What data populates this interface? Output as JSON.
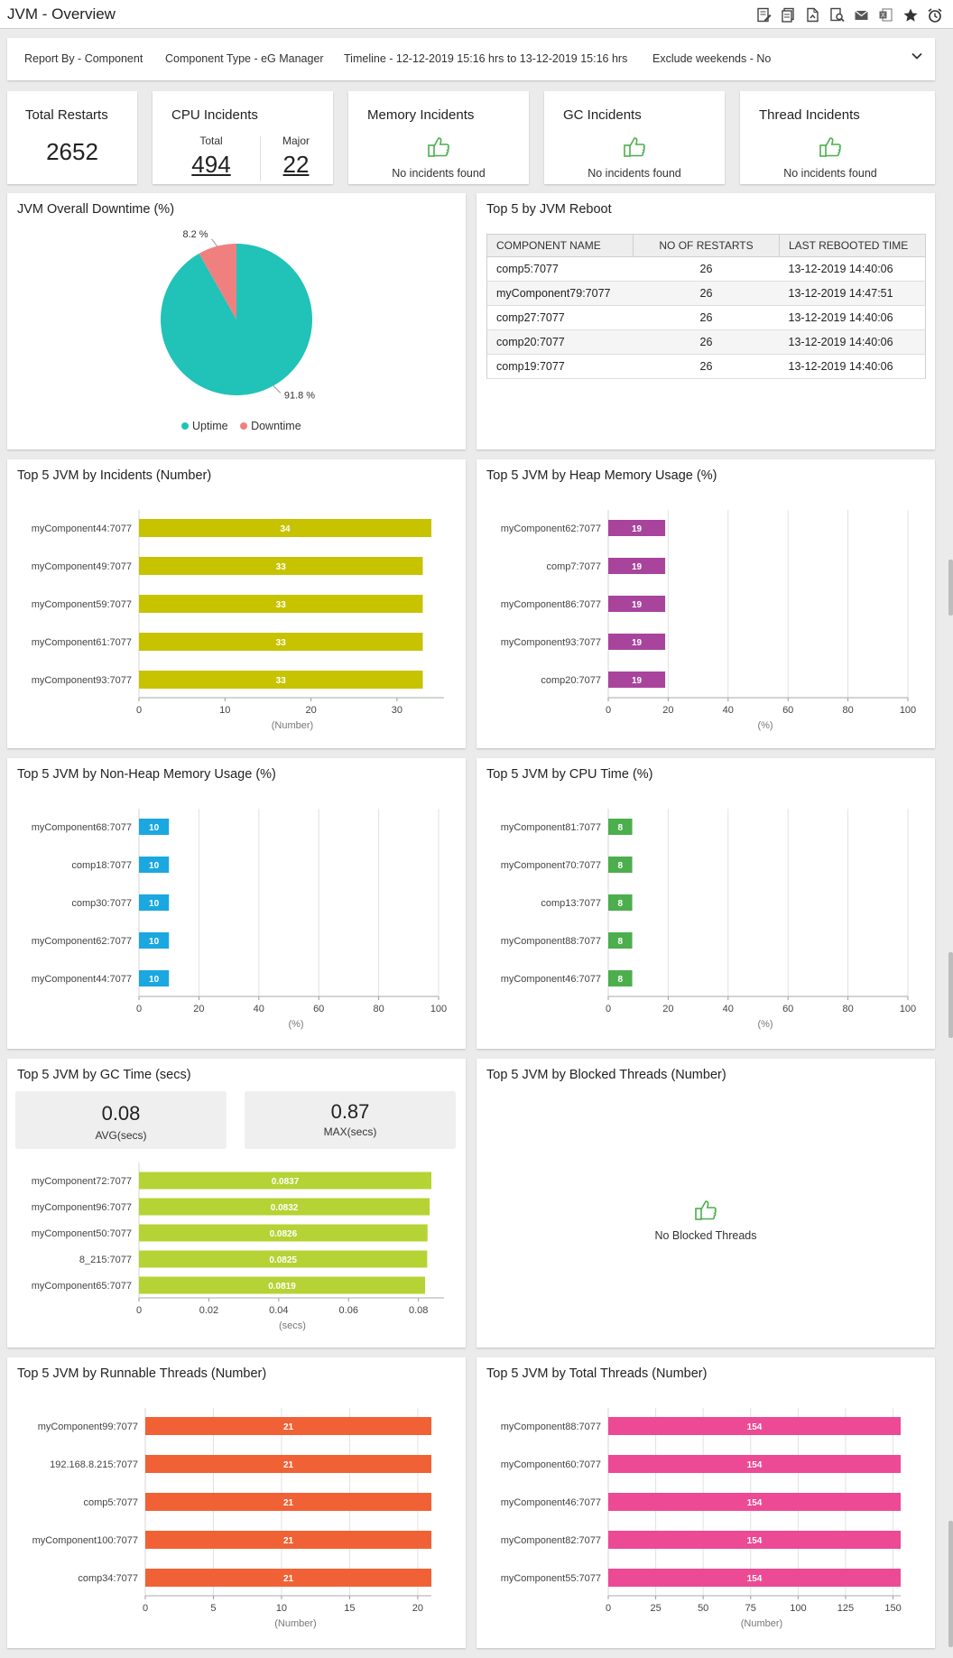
{
  "window": {
    "title": "JVM - Overview"
  },
  "toolbar": {
    "icons": [
      "report-edit-icon",
      "copy-report-icon",
      "pdf-export-icon",
      "search-report-icon",
      "email-icon",
      "excel-export-icon",
      "favorite-star-icon",
      "schedule-alarm-icon"
    ]
  },
  "filter": {
    "report_by_label": "Report By - ",
    "report_by_value": "Component",
    "component_type_label": "Component Type - ",
    "component_type_value": "eG Manager",
    "timeline_label": "Timeline - ",
    "timeline_value": "12-12-2019 15:16 hrs to 13-12-2019 15:16 hrs",
    "exclude_label": "Exclude weekends - ",
    "exclude_value": "No"
  },
  "kpis": {
    "restarts": {
      "title": "Total Restarts",
      "value": "2652"
    },
    "cpu": {
      "title": "CPU Incidents",
      "total_label": "Total",
      "total_value": "494",
      "major_label": "Major",
      "major_value": "22"
    },
    "memory": {
      "title": "Memory Incidents",
      "message": "No incidents found"
    },
    "gc": {
      "title": "GC Incidents",
      "message": "No incidents found"
    },
    "thread": {
      "title": "Thread Incidents",
      "message": "No incidents found"
    }
  },
  "downtime": {
    "title": "JVM Overall Downtime (%)",
    "uptime_label": "Uptime",
    "downtime_label": "Downtime",
    "uptime_pct": 91.8,
    "downtime_pct": 8.2,
    "uptime_text": "91.8 %",
    "downtime_text": "8.2 %",
    "uptime_color": "#21c2b8",
    "downtime_color": "#f08080"
  },
  "reboot": {
    "title": "Top 5 by JVM Reboot",
    "headers": [
      "COMPONENT NAME",
      "NO OF RESTARTS",
      "LAST REBOOTED TIME"
    ],
    "rows": [
      [
        "comp5:7077",
        "26",
        "13-12-2019 14:40:06"
      ],
      [
        "myComponent79:7077",
        "26",
        "13-12-2019 14:47:51"
      ],
      [
        "comp27:7077",
        "26",
        "13-12-2019 14:40:06"
      ],
      [
        "comp20:7077",
        "26",
        "13-12-2019 14:40:06"
      ],
      [
        "comp19:7077",
        "26",
        "13-12-2019 14:40:06"
      ]
    ]
  },
  "gc_stats": {
    "avg_value": "0.08",
    "avg_label": "AVG(secs)",
    "max_value": "0.87",
    "max_label": "MAX(secs)"
  },
  "blocked": {
    "title": "Top 5 JVM by Blocked Threads (Number)",
    "message": "No Blocked Threads"
  },
  "chart_data": [
    {
      "id": "incidents",
      "type": "bar",
      "orientation": "horizontal",
      "title": "Top 5 JVM by Incidents (Number)",
      "xlabel": "(Number)",
      "categories": [
        "myComponent44:7077",
        "myComponent49:7077",
        "myComponent59:7077",
        "myComponent61:7077",
        "myComponent93:7077"
      ],
      "values": [
        34,
        33,
        33,
        33,
        33
      ],
      "labels": [
        "34",
        "33",
        "33",
        "33",
        "33"
      ],
      "xlim": [
        0,
        34
      ],
      "ticks": [
        0,
        10,
        20,
        30
      ],
      "tick_labels": [
        "0",
        "10",
        "20",
        "30"
      ],
      "color": "#c8c300",
      "grid": false
    },
    {
      "id": "heap",
      "type": "bar",
      "orientation": "horizontal",
      "title": "Top 5 JVM by Heap Memory Usage (%)",
      "xlabel": "(%)",
      "categories": [
        "myComponent62:7077",
        "comp7:7077",
        "myComponent86:7077",
        "myComponent93:7077",
        "comp20:7077"
      ],
      "values": [
        19,
        19,
        19,
        19,
        19
      ],
      "labels": [
        "19",
        "19",
        "19",
        "19",
        "19"
      ],
      "xlim": [
        0,
        100
      ],
      "ticks": [
        0,
        20,
        40,
        60,
        80,
        100
      ],
      "tick_labels": [
        "0",
        "20",
        "40",
        "60",
        "80",
        "100"
      ],
      "color": "#a8449c",
      "grid": true
    },
    {
      "id": "nonheap",
      "type": "bar",
      "orientation": "horizontal",
      "title": "Top 5 JVM by Non-Heap Memory Usage (%)",
      "xlabel": "(%)",
      "categories": [
        "myComponent68:7077",
        "comp18:7077",
        "comp30:7077",
        "myComponent62:7077",
        "myComponent44:7077"
      ],
      "values": [
        10,
        10,
        10,
        10,
        10
      ],
      "labels": [
        "10",
        "10",
        "10",
        "10",
        "10"
      ],
      "xlim": [
        0,
        100
      ],
      "ticks": [
        0,
        20,
        40,
        60,
        80,
        100
      ],
      "tick_labels": [
        "0",
        "20",
        "40",
        "60",
        "80",
        "100"
      ],
      "color": "#1ba7e0",
      "grid": true
    },
    {
      "id": "cpu",
      "type": "bar",
      "orientation": "horizontal",
      "title": "Top 5 JVM by CPU Time (%)",
      "xlabel": "(%)",
      "categories": [
        "myComponent81:7077",
        "myComponent70:7077",
        "comp13:7077",
        "myComponent88:7077",
        "myComponent46:7077"
      ],
      "values": [
        8,
        8,
        8,
        8,
        8
      ],
      "labels": [
        "8",
        "8",
        "8",
        "8",
        "8"
      ],
      "xlim": [
        0,
        100
      ],
      "ticks": [
        0,
        20,
        40,
        60,
        80,
        100
      ],
      "tick_labels": [
        "0",
        "20",
        "40",
        "60",
        "80",
        "100"
      ],
      "color": "#4cae4c",
      "grid": true
    },
    {
      "id": "gctime",
      "type": "bar",
      "orientation": "horizontal",
      "title": "Top 5 JVM by GC Time (secs)",
      "xlabel": "(secs)",
      "categories": [
        "myComponent72:7077",
        "myComponent96:7077",
        "myComponent50:7077",
        "8_215:7077",
        "myComponent65:7077"
      ],
      "values": [
        0.0837,
        0.0832,
        0.0826,
        0.0825,
        0.0819
      ],
      "labels": [
        "0.0837",
        "0.0832",
        "0.0826",
        "0.0825",
        "0.0819"
      ],
      "xlim": [
        0,
        0.0837
      ],
      "ticks": [
        0,
        0.02,
        0.04,
        0.06,
        0.08
      ],
      "tick_labels": [
        "0",
        "0.02",
        "0.04",
        "0.06",
        "0.08"
      ],
      "color": "#b5d334",
      "grid": false
    },
    {
      "id": "runnable",
      "type": "bar",
      "orientation": "horizontal",
      "title": "Top 5 JVM by Runnable Threads (Number)",
      "xlabel": "(Number)",
      "categories": [
        "myComponent99:7077",
        "192.168.8.215:7077",
        "comp5:7077",
        "myComponent100:7077",
        "comp34:7077"
      ],
      "values": [
        21,
        21,
        21,
        21,
        21
      ],
      "labels": [
        "21",
        "21",
        "21",
        "21",
        "21"
      ],
      "xlim": [
        0,
        21
      ],
      "ticks": [
        0,
        5,
        10,
        15,
        20
      ],
      "tick_labels": [
        "0",
        "5",
        "10",
        "15",
        "20"
      ],
      "color": "#f06236",
      "grid": true
    },
    {
      "id": "total",
      "type": "bar",
      "orientation": "horizontal",
      "title": "Top 5 JVM by Total Threads (Number)",
      "xlabel": "(Number)",
      "categories": [
        "myComponent88:7077",
        "myComponent60:7077",
        "myComponent46:7077",
        "myComponent82:7077",
        "myComponent55:7077"
      ],
      "values": [
        154,
        154,
        154,
        154,
        154
      ],
      "labels": [
        "154",
        "154",
        "154",
        "154",
        "154"
      ],
      "xlim": [
        0,
        154
      ],
      "ticks": [
        0,
        25,
        50,
        75,
        100,
        125,
        150
      ],
      "tick_labels": [
        "0",
        "25",
        "50",
        "75",
        "100",
        "125",
        "150"
      ],
      "color": "#ec4a94",
      "grid": true
    }
  ]
}
